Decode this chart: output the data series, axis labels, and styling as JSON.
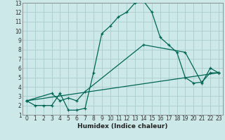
{
  "xlabel": "Humidex (Indice chaleur)",
  "bg_color": "#cce8e8",
  "grid_color": "#aacccc",
  "line_color": "#006655",
  "line1_x": [
    0,
    1,
    2,
    3,
    4,
    5,
    6,
    7,
    8,
    9,
    10,
    11,
    12,
    13,
    14,
    15,
    16,
    17,
    18,
    19,
    20,
    21,
    22,
    23
  ],
  "line1_y": [
    2.5,
    2.0,
    2.0,
    2.0,
    3.3,
    1.5,
    1.5,
    1.7,
    5.5,
    9.7,
    10.5,
    11.5,
    12.0,
    13.0,
    13.2,
    12.0,
    9.3,
    8.5,
    7.7,
    5.0,
    4.4,
    4.5,
    5.5,
    5.5
  ],
  "line2_x": [
    0,
    3,
    4,
    5,
    6,
    7,
    14,
    19,
    21,
    22,
    23
  ],
  "line2_y": [
    2.5,
    3.3,
    2.5,
    2.8,
    2.5,
    3.5,
    8.5,
    7.7,
    4.4,
    6.0,
    5.5
  ],
  "line3_x": [
    0,
    23
  ],
  "line3_y": [
    2.5,
    5.5
  ],
  "xlim": [
    -0.5,
    23.5
  ],
  "ylim": [
    1,
    13
  ],
  "xticks": [
    0,
    1,
    2,
    3,
    4,
    5,
    6,
    7,
    8,
    9,
    10,
    11,
    12,
    13,
    14,
    15,
    16,
    17,
    18,
    19,
    20,
    21,
    22,
    23
  ],
  "yticks": [
    1,
    2,
    3,
    4,
    5,
    6,
    7,
    8,
    9,
    10,
    11,
    12,
    13
  ],
  "tick_fontsize": 5.5,
  "xlabel_fontsize": 6.5,
  "line_width": 0.9,
  "marker_size": 3.5
}
